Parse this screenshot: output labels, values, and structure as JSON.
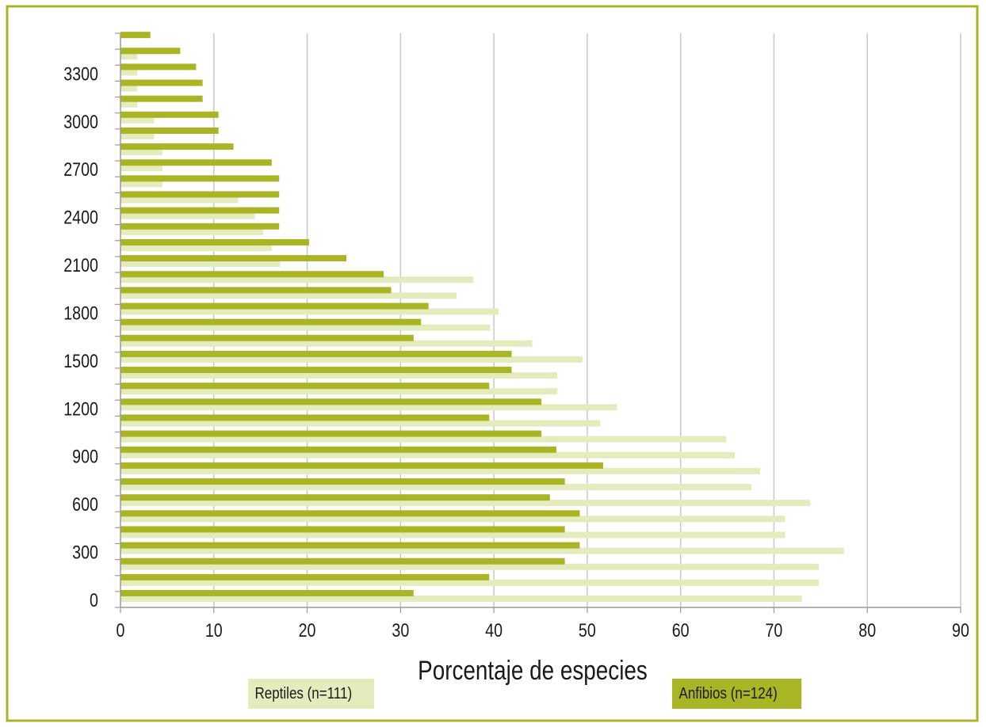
{
  "chart_data": {
    "type": "bar",
    "orientation": "horizontal",
    "xlabel": "Porcentaje de especies",
    "ylabel": "",
    "xlim": [
      0,
      90
    ],
    "x_ticks": [
      "0",
      "10",
      "20",
      "30",
      "40",
      "50",
      "60",
      "70",
      "80",
      "90"
    ],
    "y_tick_labels": [
      "0",
      "300",
      "600",
      "900",
      "1200",
      "1500",
      "1800",
      "2100",
      "2400",
      "2700",
      "3000",
      "3300"
    ],
    "categories": [
      0,
      100,
      200,
      300,
      400,
      500,
      600,
      700,
      800,
      900,
      1000,
      1100,
      1200,
      1300,
      1400,
      1500,
      1600,
      1700,
      1800,
      1900,
      2000,
      2100,
      2200,
      2300,
      2400,
      2500,
      2600,
      2700,
      2800,
      2900,
      3000,
      3100,
      3200,
      3300,
      3400,
      3500
    ],
    "grid": "vertical",
    "series": [
      {
        "name": "Anfibios (n=124)",
        "color": "#a9b524",
        "values": [
          31.4,
          39.5,
          47.6,
          49.2,
          47.6,
          49.2,
          46.0,
          47.6,
          51.7,
          46.7,
          45.1,
          39.5,
          45.1,
          39.5,
          41.9,
          41.9,
          31.4,
          32.2,
          33.0,
          29.0,
          28.2,
          24.2,
          20.2,
          17.0,
          17.0,
          17.0,
          17.0,
          16.2,
          12.1,
          10.5,
          10.5,
          8.8,
          8.8,
          8.1,
          6.4,
          3.2
        ]
      },
      {
        "name": "Reptiles (n=111)",
        "color": "#e4ebbd",
        "values": [
          73.0,
          74.8,
          74.8,
          77.5,
          71.2,
          71.2,
          73.9,
          67.6,
          68.5,
          65.8,
          64.9,
          51.4,
          53.2,
          46.8,
          46.8,
          49.5,
          44.1,
          39.6,
          40.5,
          36.0,
          37.8,
          17.1,
          16.2,
          15.3,
          14.4,
          12.6,
          4.5,
          4.5,
          4.5,
          3.6,
          3.6,
          1.8,
          1.8,
          1.8,
          1.8,
          0
        ]
      }
    ],
    "legend": [
      {
        "label": "Reptiles (n=111)",
        "color": "#e4ebbd"
      },
      {
        "label": "Anfibios (n=124)",
        "color": "#a9b524"
      }
    ],
    "legend_placement": "bottom"
  }
}
